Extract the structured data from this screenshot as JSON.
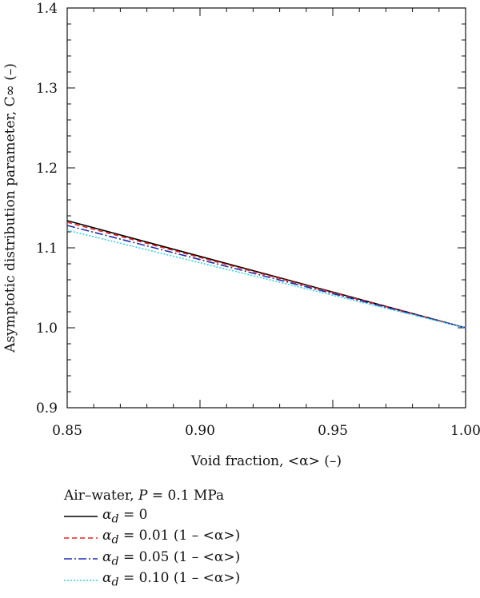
{
  "chart_data": {
    "type": "line",
    "xlabel": "Void fraction, <α> (–)",
    "ylabel": "Asymptotic distribution parameter, C∞ (–)",
    "xlim": [
      0.85,
      1.0
    ],
    "ylim": [
      0.9,
      1.4
    ],
    "xticks": [
      "0.85",
      "0.90",
      "0.95",
      "1.00"
    ],
    "yticks": [
      "0.9",
      "1.0",
      "1.1",
      "1.2",
      "1.3",
      "1.4"
    ],
    "grid": false,
    "legend_position": "bottom-left, below plot",
    "legend_title": {
      "prefix": "Air–water, ",
      "var": "P",
      "suffix": " = 0.1 MPa"
    },
    "series": [
      {
        "legend": {
          "sym": "α",
          "sub": "d",
          "rest": " = 0"
        },
        "color": "#000000",
        "dash": "",
        "x": [
          0.85,
          1.0
        ],
        "y": [
          1.134,
          1.0
        ]
      },
      {
        "legend": {
          "sym": "α",
          "sub": "d",
          "rest": " = 0.01 (1 – <α>)"
        },
        "color": "#e8211f",
        "dash": "6,4",
        "x": [
          0.85,
          1.0
        ],
        "y": [
          1.132,
          1.0
        ]
      },
      {
        "legend": {
          "sym": "α",
          "sub": "d",
          "rest": " = 0.05 (1 – <α>)"
        },
        "color": "#1d2fb0",
        "dash": "10,3,2,3",
        "x": [
          0.85,
          1.0
        ],
        "y": [
          1.128,
          1.0
        ]
      },
      {
        "legend": {
          "sym": "α",
          "sub": "d",
          "rest": " = 0.10 (1 – <α>)"
        },
        "color": "#33d4e8",
        "dash": "2,2",
        "x": [
          0.85,
          1.0
        ],
        "y": [
          1.122,
          1.0
        ]
      }
    ]
  }
}
